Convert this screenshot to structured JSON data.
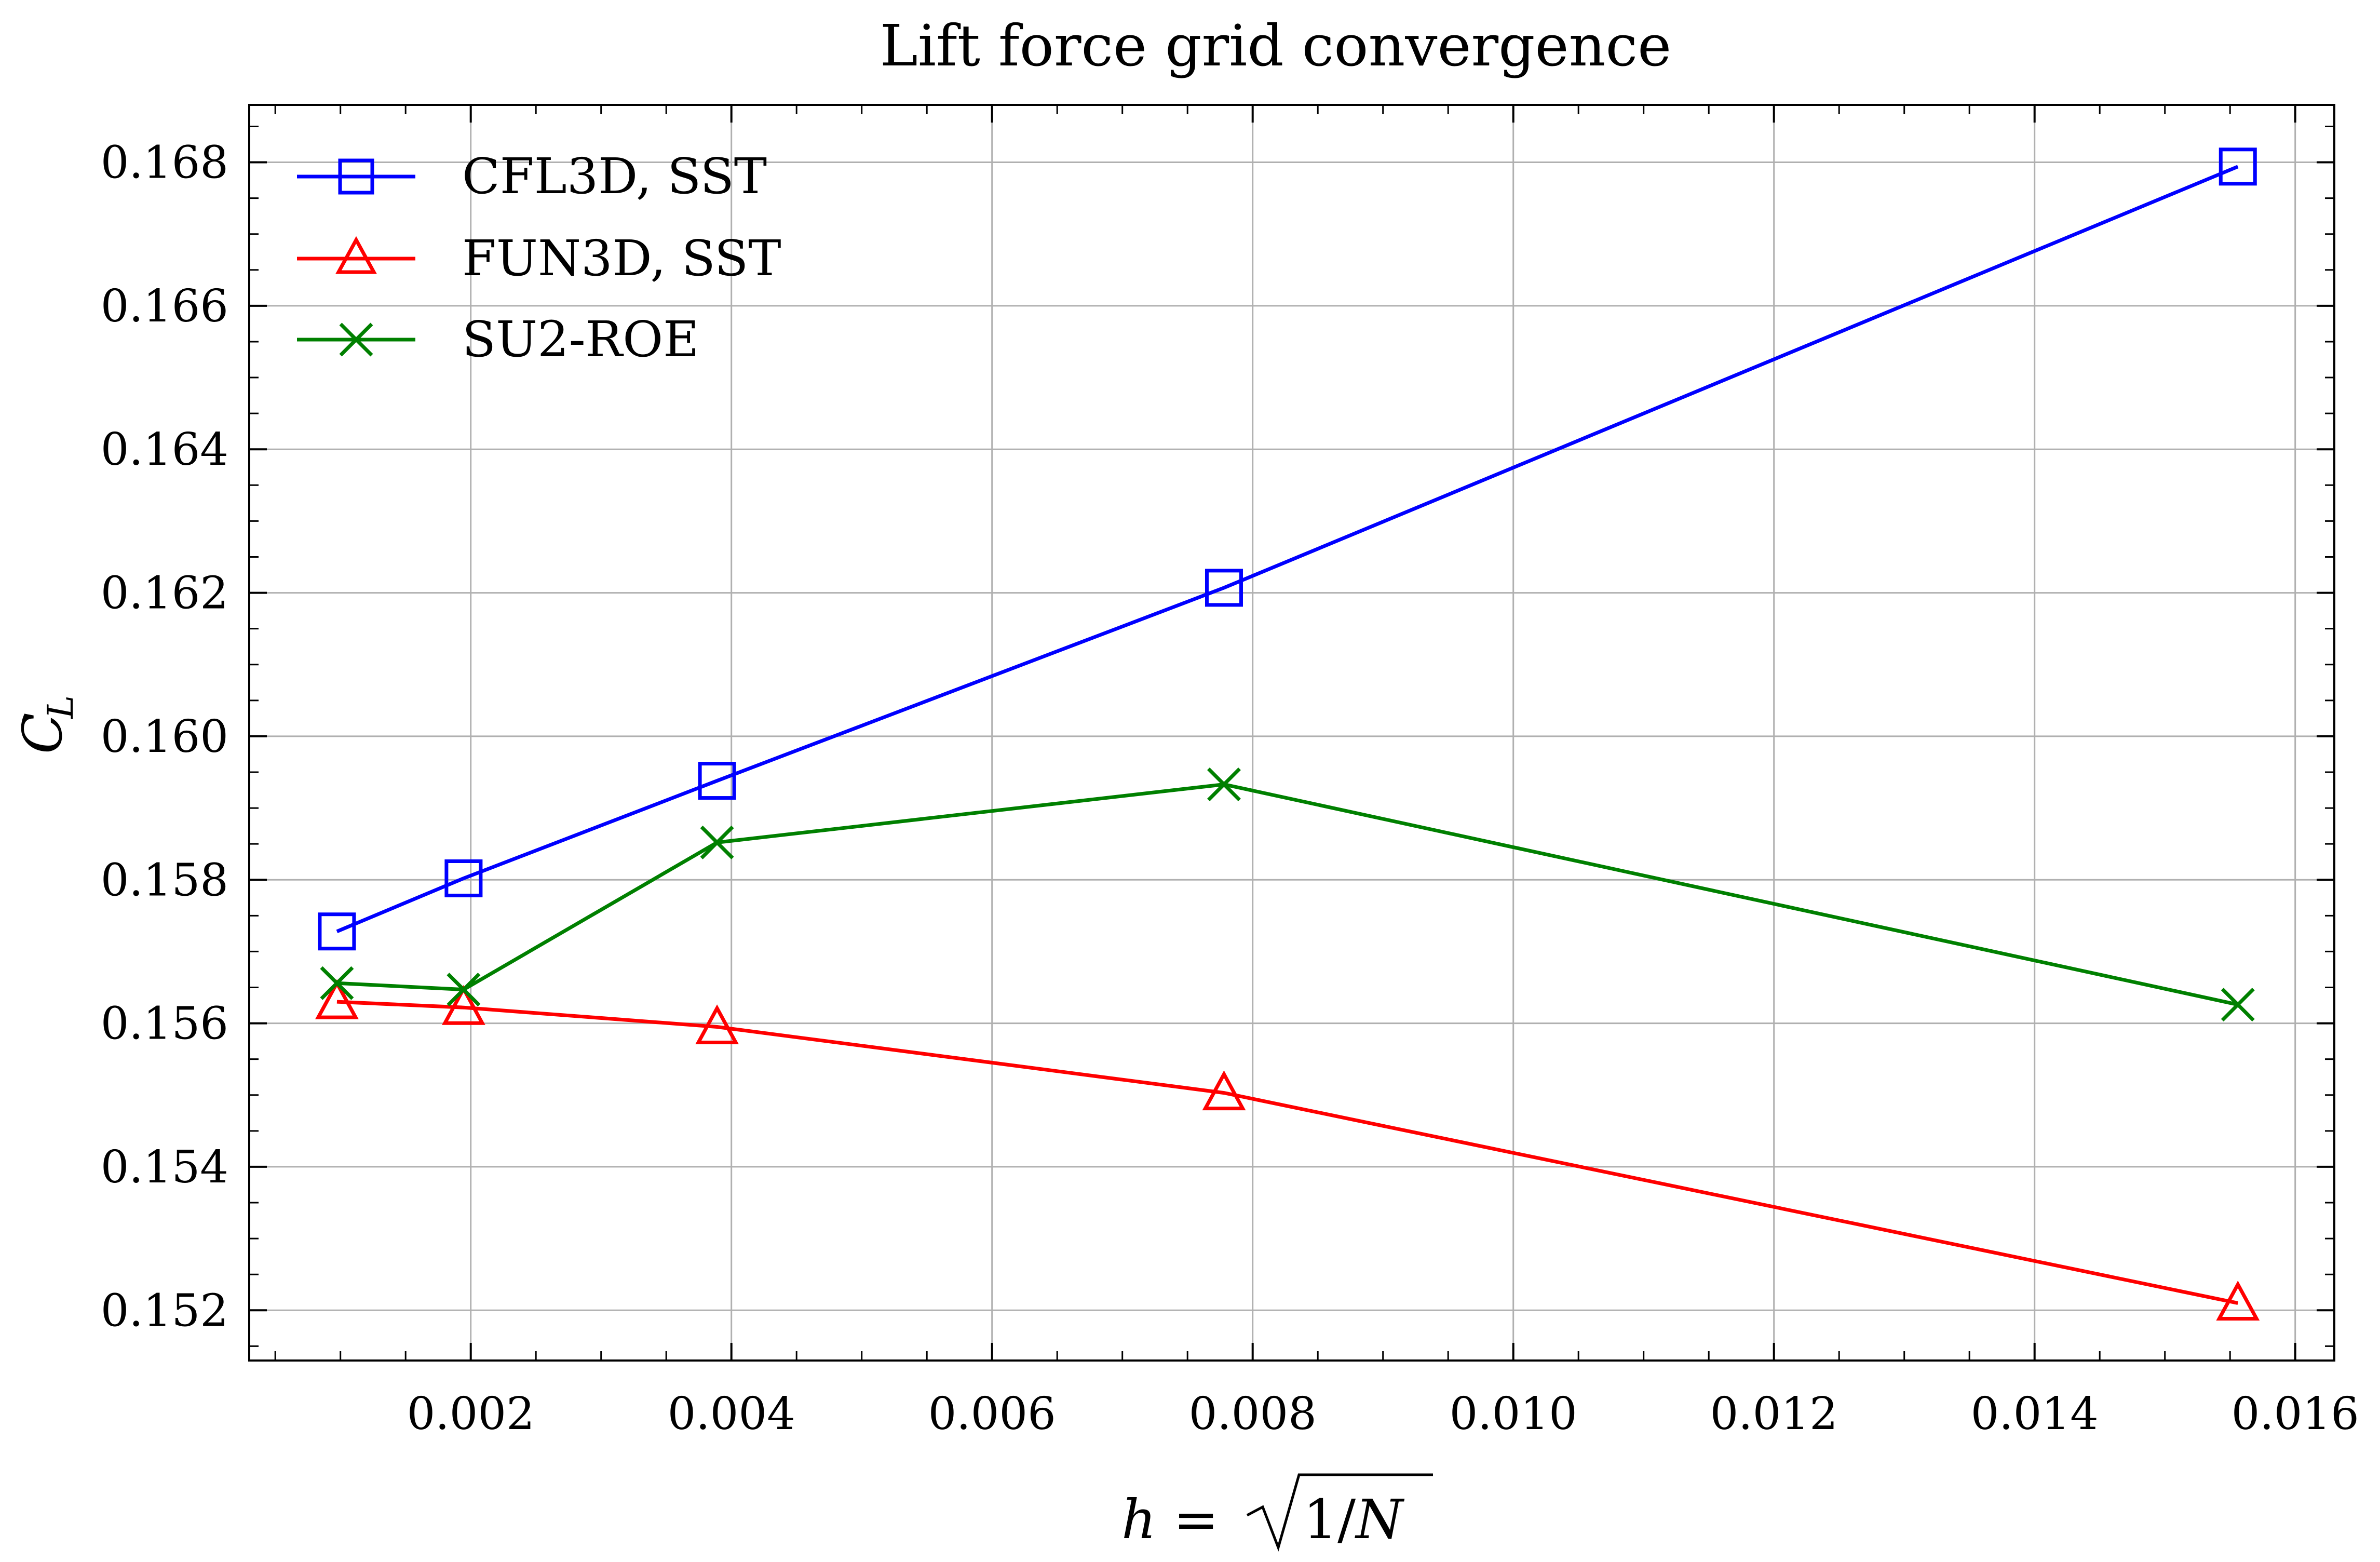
{
  "chart_data": {
    "type": "line",
    "title": "Lift force grid convergence",
    "xlabel": "h = √(1/N)",
    "ylabel": "C_L",
    "xlim": [
      0.0003,
      0.0163
    ],
    "ylim": [
      0.1513,
      0.1688
    ],
    "xticks": [
      0.002,
      0.004,
      0.006,
      0.008,
      0.01,
      0.012,
      0.014,
      0.016
    ],
    "xtick_labels": [
      "0.002",
      "0.004",
      "0.006",
      "0.008",
      "0.010",
      "0.012",
      "0.014",
      "0.016"
    ],
    "yticks": [
      0.152,
      0.154,
      0.156,
      0.158,
      0.16,
      0.162,
      0.164,
      0.166,
      0.168
    ],
    "ytick_labels": [
      "0.152",
      "0.154",
      "0.156",
      "0.158",
      "0.160",
      "0.162",
      "0.164",
      "0.166",
      "0.168"
    ],
    "grid": true,
    "legend_position": "top-left",
    "x": [
      0.000973,
      0.001945,
      0.00389,
      0.00778,
      0.01556
    ],
    "series": [
      {
        "name": "CFL3D, SST",
        "color": "#0000ff",
        "marker": "square",
        "values": [
          0.15728,
          0.15802,
          0.15938,
          0.16207,
          0.16794
        ]
      },
      {
        "name": "FUN3D, SST",
        "color": "#ff0000",
        "marker": "triangle",
        "values": [
          0.1563,
          0.15622,
          0.15595,
          0.15503,
          0.1521
        ]
      },
      {
        "name": "SU2-ROE",
        "color": "#008000",
        "marker": "x",
        "values": [
          0.15656,
          0.15647,
          0.15852,
          0.15933,
          0.15626
        ]
      }
    ]
  }
}
